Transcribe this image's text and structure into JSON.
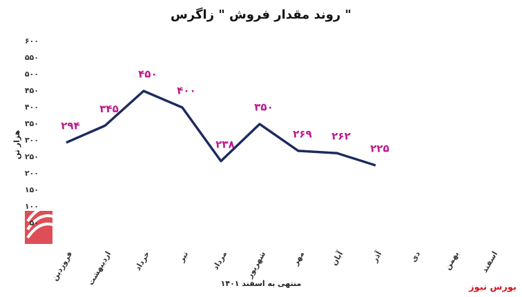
{
  "chart_data": {
    "type": "line",
    "title": "روند مقدار فروش \" زاگرس \"",
    "y_label": "هزار تن",
    "x_label": "منتهی به اسفند ۱۴۰۱",
    "source": "بورس نیوز",
    "categories": [
      "فروردین",
      "اردیبهشت",
      "خرداد",
      "تیر",
      "مرداد",
      "شهریور",
      "مهر",
      "آبان",
      "آذر",
      "دی",
      "بهمن",
      "اسفند"
    ],
    "series": [
      {
        "name": "مقدار فروش",
        "color": "#1c2b5e",
        "values": [
          294,
          345,
          450,
          400,
          238,
          350,
          269,
          262,
          225,
          null,
          null,
          null
        ],
        "value_labels": [
          "۲۹۴",
          "۳۴۵",
          "۴۵۰",
          "۴۰۰",
          "۲۳۸",
          "۳۵۰",
          "۲۶۹",
          "۲۶۲",
          "۲۲۵",
          null,
          null,
          null
        ]
      }
    ],
    "label_color": "#c0168c",
    "ylim": [
      0,
      600
    ],
    "yticks": [
      {
        "value": 50,
        "label": "۵۰"
      },
      {
        "value": 100,
        "label": "۱۰۰"
      },
      {
        "value": 150,
        "label": "۱۵۰"
      },
      {
        "value": 200,
        "label": "۲۰۰"
      },
      {
        "value": 250,
        "label": "۲۵۰"
      },
      {
        "value": 300,
        "label": "۳۰۰"
      },
      {
        "value": 350,
        "label": "۳۵۰"
      },
      {
        "value": 400,
        "label": "۴۰۰"
      },
      {
        "value": 450,
        "label": "۴۵۰"
      },
      {
        "value": 500,
        "label": "۵۰۰"
      },
      {
        "value": 550,
        "label": "۵۵۰"
      },
      {
        "value": 600,
        "label": "۶۰۰"
      }
    ]
  }
}
